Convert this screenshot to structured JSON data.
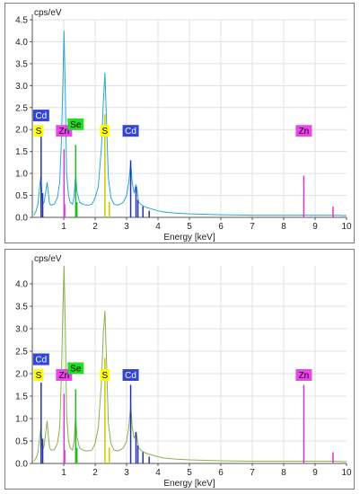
{
  "chart_data": [
    {
      "type": "line",
      "ylabel": "cps/eV",
      "xlabel": "Energy [keV]",
      "xlim": [
        0,
        10
      ],
      "ylim": [
        0,
        4.5
      ],
      "xticks": [
        "1",
        "2",
        "3",
        "4",
        "5",
        "6",
        "7",
        "8",
        "9",
        "10"
      ],
      "yticks": [
        "0.0",
        "0.5",
        "1.0",
        "1.5",
        "2.0",
        "2.5",
        "3.0",
        "3.5",
        "4.0",
        "4.5"
      ],
      "grid": true,
      "spectrum_color": "#29a7cf",
      "series": [
        {
          "x": [
            0.05,
            0.12,
            0.18,
            0.22,
            0.27,
            0.3,
            0.33,
            0.38,
            0.42,
            0.47,
            0.51,
            0.55,
            0.6,
            0.7,
            0.8,
            0.87,
            0.93,
            0.97,
            1.01,
            1.05,
            1.09,
            1.15,
            1.2,
            1.28,
            1.33,
            1.38,
            1.42,
            1.5,
            1.6,
            1.7,
            1.8,
            1.9,
            2.0,
            2.1,
            2.2,
            2.26,
            2.31,
            2.36,
            2.42,
            2.5,
            2.6,
            2.7,
            2.8,
            2.9,
            3.0,
            3.07,
            3.13,
            3.18,
            3.24,
            3.3,
            3.34,
            3.38,
            3.45,
            3.55,
            3.65,
            3.75,
            3.85,
            4.0,
            4.2,
            4.5,
            5.0,
            5.5,
            6.0,
            7.0,
            8.0,
            8.6,
            8.64,
            8.68,
            9.0,
            9.6,
            10.0
          ],
          "y": [
            0.05,
            0.15,
            0.3,
            0.6,
            0.95,
            0.6,
            0.3,
            0.35,
            0.55,
            0.8,
            0.55,
            0.3,
            0.28,
            0.3,
            0.45,
            0.8,
            1.8,
            3.0,
            4.25,
            2.8,
            1.0,
            0.5,
            0.35,
            0.3,
            0.5,
            1.0,
            0.6,
            0.35,
            0.3,
            0.28,
            0.28,
            0.3,
            0.45,
            0.7,
            1.6,
            2.6,
            3.3,
            2.2,
            0.9,
            0.45,
            0.3,
            0.28,
            0.3,
            0.35,
            0.5,
            0.8,
            1.25,
            0.8,
            0.55,
            0.75,
            0.6,
            0.35,
            0.3,
            0.25,
            0.22,
            0.2,
            0.18,
            0.15,
            0.12,
            0.1,
            0.08,
            0.07,
            0.06,
            0.05,
            0.05,
            0.05,
            0.06,
            0.05,
            0.05,
            0.05,
            0.04
          ]
        }
      ],
      "markers": [
        {
          "label": "S",
          "energy": 2.31,
          "height": 1.97,
          "color": "#ffff00",
          "text_color": "#000000"
        },
        {
          "label": "Cd",
          "energy": 3.13,
          "height": 1.97,
          "color": "#3344dd",
          "text_color": "#ffffff"
        },
        {
          "label": "Zn",
          "energy": 1.01,
          "height": 1.97,
          "color": "#ee44ee",
          "text_color": "#000000"
        },
        {
          "label": "Zn",
          "energy": 8.64,
          "height": 1.97,
          "color": "#ee44ee",
          "text_color": "#000000"
        },
        {
          "label": "Se",
          "energy": 1.38,
          "height": 2.12,
          "color": "#22dd22",
          "text_color": "#000000"
        },
        {
          "label": "S",
          "energy": 0.2,
          "height": 1.97,
          "color": "#ffff00",
          "text_color": "#000000"
        },
        {
          "label": "Cd",
          "energy": 0.28,
          "height": 2.32,
          "color": "#3344dd",
          "text_color": "#ffffff"
        }
      ],
      "lines": [
        {
          "energy": 0.28,
          "height": 1.85,
          "color": "#2233aa"
        },
        {
          "energy": 0.33,
          "height": 0.55,
          "color": "#2233aa"
        },
        {
          "energy": 1.01,
          "height": 1.55,
          "color": "#dd33dd"
        },
        {
          "energy": 1.03,
          "height": 0.3,
          "color": "#dd33dd"
        },
        {
          "energy": 1.38,
          "height": 1.65,
          "color": "#22bb22"
        },
        {
          "energy": 1.42,
          "height": 0.35,
          "color": "#22bb22"
        },
        {
          "energy": 2.31,
          "height": 2.35,
          "color": "#cccc00"
        },
        {
          "energy": 2.45,
          "height": 0.35,
          "color": "#cccc00"
        },
        {
          "energy": 3.13,
          "height": 1.3,
          "color": "#2233aa"
        },
        {
          "energy": 3.3,
          "height": 0.7,
          "color": "#2233aa"
        },
        {
          "energy": 3.36,
          "height": 0.4,
          "color": "#2233aa"
        },
        {
          "energy": 3.52,
          "height": 0.25,
          "color": "#2233aa"
        },
        {
          "energy": 3.72,
          "height": 0.15,
          "color": "#2233aa"
        },
        {
          "energy": 8.64,
          "height": 0.95,
          "color": "#dd33dd"
        },
        {
          "energy": 9.57,
          "height": 0.25,
          "color": "#dd33dd"
        }
      ]
    },
    {
      "type": "line",
      "ylabel": "cps/eV",
      "xlabel": "Energy [keV]",
      "xlim": [
        0,
        10
      ],
      "ylim": [
        0,
        4.4
      ],
      "xticks": [
        "1",
        "2",
        "3",
        "4",
        "5",
        "6",
        "7",
        "8",
        "9",
        "10"
      ],
      "yticks": [
        "0.0",
        "0.5",
        "1.0",
        "1.5",
        "2.0",
        "2.5",
        "3.0",
        "3.5",
        "4.0"
      ],
      "grid": true,
      "spectrum_color": "#8cb04e",
      "series": [
        {
          "x": [
            0.05,
            0.12,
            0.18,
            0.22,
            0.27,
            0.3,
            0.33,
            0.38,
            0.42,
            0.47,
            0.51,
            0.55,
            0.6,
            0.7,
            0.8,
            0.87,
            0.93,
            0.97,
            1.01,
            1.05,
            1.09,
            1.15,
            1.2,
            1.28,
            1.33,
            1.38,
            1.42,
            1.5,
            1.6,
            1.7,
            1.8,
            1.9,
            2.0,
            2.1,
            2.2,
            2.26,
            2.31,
            2.36,
            2.42,
            2.5,
            2.6,
            2.7,
            2.8,
            2.9,
            3.0,
            3.07,
            3.13,
            3.18,
            3.24,
            3.3,
            3.34,
            3.38,
            3.45,
            3.55,
            3.65,
            3.75,
            3.85,
            4.0,
            4.2,
            4.5,
            5.0,
            5.5,
            6.0,
            7.0,
            8.0,
            8.6,
            8.64,
            8.68,
            9.0,
            9.6,
            10.0
          ],
          "y": [
            0.05,
            0.12,
            0.25,
            0.5,
            0.8,
            0.55,
            0.3,
            0.4,
            0.65,
            0.95,
            0.6,
            0.35,
            0.3,
            0.3,
            0.45,
            0.8,
            2.0,
            3.4,
            4.4,
            3.0,
            1.1,
            0.5,
            0.35,
            0.3,
            0.5,
            1.1,
            0.6,
            0.35,
            0.3,
            0.28,
            0.28,
            0.3,
            0.45,
            0.8,
            1.8,
            2.9,
            3.4,
            2.3,
            0.9,
            0.45,
            0.3,
            0.28,
            0.3,
            0.35,
            0.5,
            0.8,
            1.3,
            0.8,
            0.55,
            0.7,
            0.55,
            0.35,
            0.3,
            0.25,
            0.22,
            0.2,
            0.18,
            0.15,
            0.12,
            0.1,
            0.08,
            0.07,
            0.06,
            0.05,
            0.05,
            0.05,
            0.06,
            0.05,
            0.05,
            0.05,
            0.04
          ]
        }
      ],
      "markers": [
        {
          "label": "S",
          "energy": 2.31,
          "height": 1.97,
          "color": "#ffff00",
          "text_color": "#000000"
        },
        {
          "label": "Cd",
          "energy": 3.13,
          "height": 1.97,
          "color": "#3344dd",
          "text_color": "#ffffff"
        },
        {
          "label": "Zn",
          "energy": 1.01,
          "height": 1.97,
          "color": "#ee44ee",
          "text_color": "#000000"
        },
        {
          "label": "Zn",
          "energy": 8.64,
          "height": 1.97,
          "color": "#ee44ee",
          "text_color": "#000000"
        },
        {
          "label": "Se",
          "energy": 1.38,
          "height": 2.12,
          "color": "#22dd22",
          "text_color": "#000000"
        },
        {
          "label": "S",
          "energy": 0.2,
          "height": 1.97,
          "color": "#ffff00",
          "text_color": "#000000"
        },
        {
          "label": "Cd",
          "energy": 0.28,
          "height": 2.32,
          "color": "#3344dd",
          "text_color": "#ffffff"
        }
      ],
      "lines": [
        {
          "energy": 0.28,
          "height": 1.8,
          "color": "#2233aa"
        },
        {
          "energy": 0.33,
          "height": 0.55,
          "color": "#2233aa"
        },
        {
          "energy": 1.01,
          "height": 1.55,
          "color": "#dd33dd"
        },
        {
          "energy": 1.03,
          "height": 0.3,
          "color": "#dd33dd"
        },
        {
          "energy": 1.38,
          "height": 1.65,
          "color": "#22bb22"
        },
        {
          "energy": 1.42,
          "height": 0.35,
          "color": "#22bb22"
        },
        {
          "energy": 2.31,
          "height": 2.35,
          "color": "#cccc00"
        },
        {
          "energy": 2.45,
          "height": 0.35,
          "color": "#cccc00"
        },
        {
          "energy": 3.13,
          "height": 1.75,
          "color": "#2233aa"
        },
        {
          "energy": 3.3,
          "height": 0.7,
          "color": "#2233aa"
        },
        {
          "energy": 3.36,
          "height": 0.4,
          "color": "#2233aa"
        },
        {
          "energy": 3.52,
          "height": 0.25,
          "color": "#2233aa"
        },
        {
          "energy": 3.72,
          "height": 0.15,
          "color": "#2233aa"
        },
        {
          "energy": 8.64,
          "height": 1.75,
          "color": "#dd33dd"
        },
        {
          "energy": 9.57,
          "height": 0.25,
          "color": "#dd33dd"
        }
      ]
    }
  ]
}
